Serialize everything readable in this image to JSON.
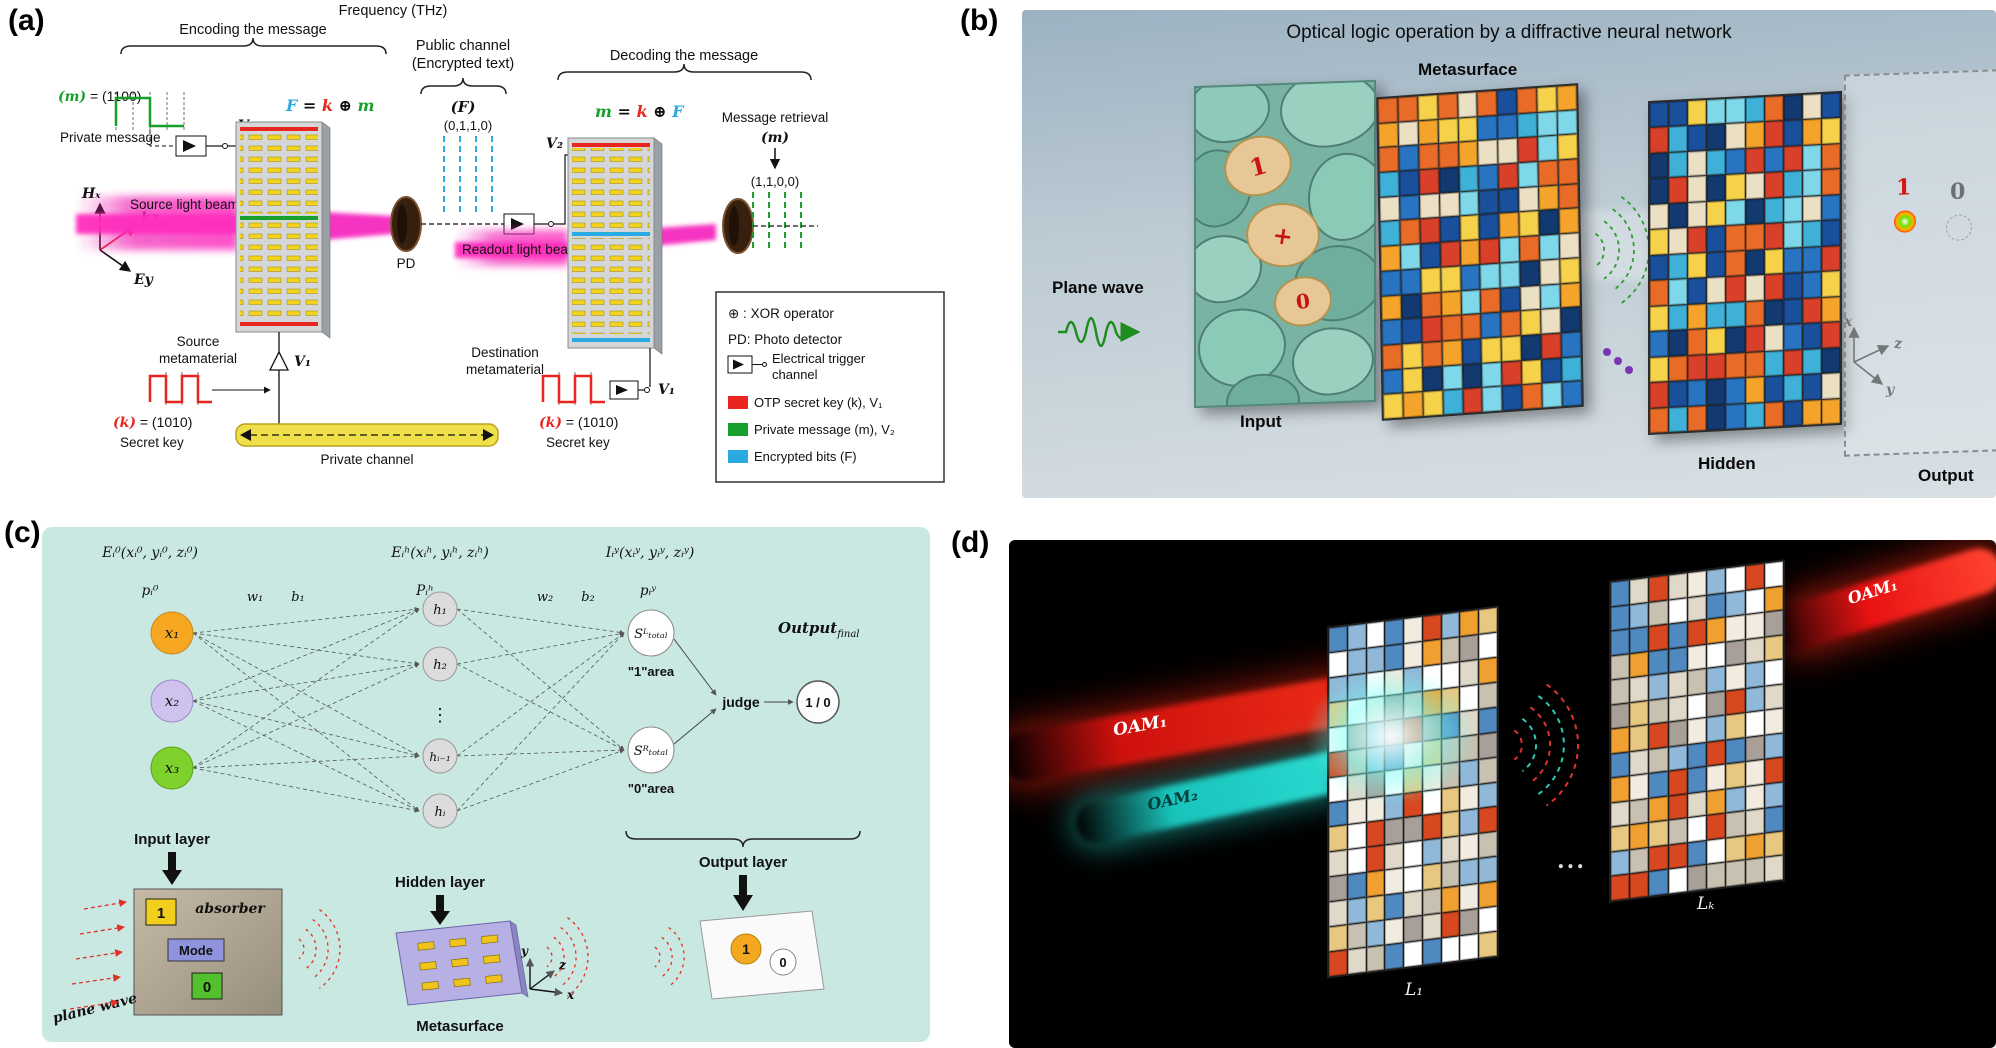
{
  "figure": {
    "a_label": "(a)",
    "b_label": "(b)",
    "c_label": "(c)",
    "d_label": "(d)"
  },
  "colors": {
    "otp_red": "#e8251f",
    "message_green": "#17a02b",
    "encrypted_cyan": "#29abe2",
    "beam_magenta": "#f01fb4",
    "panel_c_bg": "#c9e8e2",
    "oam_red": "#e81212",
    "oam_cyan": "#2ee0d6"
  },
  "a": {
    "frequency": "Frequency (THz)",
    "encoding": "Encoding the message",
    "public_channel_1": "Public channel",
    "public_channel_2": "(Encrypted text)",
    "decoding": "Decoding the message",
    "msg_m": "(m)",
    "msg_rest": " = (1100)",
    "private_message": "Private message",
    "v2": "V₂",
    "v1": "V₁",
    "eq_encode": {
      "lhs": "F",
      "eq": " = ",
      "k": "k",
      "xor": " ⊕ ",
      "rhs": "m"
    },
    "eq_decode": {
      "lhs": "m",
      "eq": " = ",
      "k": "k",
      "xor": " ⊕ ",
      "rhs": "F"
    },
    "f_label": "(F)",
    "f_bits": "(0,1,1,0)",
    "retrieval": "Message retrieval",
    "retrieval_m": "(m)",
    "retrieval_bits": "(1,1,0,0)",
    "source_beam": "Source light beam",
    "readout_beam": "Readout light beam",
    "pd": "PD",
    "source_meta_1": "Source",
    "source_meta_2": "metamaterial",
    "dest_meta_1": "Destination",
    "dest_meta_2": "metamaterial",
    "key_k": "(k)",
    "key_rest": " = (1010)",
    "secret_key": "Secret key",
    "private_channel": "Private channel",
    "axis_hx": "Hₓ",
    "axis_kz": "kz",
    "axis_ey": "Ey",
    "legend": {
      "xor": "⊕ : XOR operator",
      "pd": "PD: Photo detector",
      "trigger_1": "Electrical trigger",
      "trigger_2": "channel",
      "otp": "OTP secret key (k), V₁",
      "pm": "Private message (m), V₂",
      "enc": "Encrypted bits (F)"
    }
  },
  "b": {
    "title": "Optical logic operation by a diffractive neural network",
    "plane_wave": "Plane wave",
    "input": "Input",
    "metasurface": "Metasurface",
    "hidden": "Hidden",
    "output": "Output",
    "in_1": "1",
    "in_plus": "+",
    "in_0": "0",
    "out_1": "1",
    "out_0": "0",
    "axis_x": "x",
    "axis_y": "y",
    "axis_z": "z"
  },
  "c": {
    "e0": "Eᵢ⁰(xᵢ⁰, yᵢ⁰, zᵢ⁰)",
    "eh": "Eᵢʰ(xᵢʰ, yᵢʰ, zᵢʰ)",
    "iy": "Iᵢʸ(xᵢʸ, yᵢʸ, zᵢʸ)",
    "p0": "pᵢ⁰",
    "ph": "Pᵢʰ",
    "py": "pᵢʸ",
    "w1": "w₁",
    "b1": "b₁",
    "w2": "w₂",
    "b2": "b₂",
    "x1": "x₁",
    "x2": "x₂",
    "x3": "x₃",
    "h1": "h₁",
    "h2": "h₂",
    "hdots": "⋮",
    "hi1": "hᵢ₋₁",
    "hi": "hᵢ",
    "sL": "Sᴸₜₒₜₐₗ",
    "sR": "Sᴿₜₒₜₐₗ",
    "area1": "\"1\"area",
    "area0": "\"0\"area",
    "judge": "judge",
    "one_zero": "1 / 0",
    "output_final_base": "Output",
    "output_final_sub": "final",
    "input_layer": "Input layer",
    "hidden_layer": "Hidden layer",
    "output_layer": "Output layer",
    "absorber": "absorber",
    "mode": "Mode",
    "tile_1": "1",
    "tile_0": "0",
    "plane_wave": "plane wave",
    "metasurface": "Metasurface",
    "out_1": "1",
    "out_0": "0",
    "axis_x": "x",
    "axis_y": "y",
    "axis_z": "z"
  },
  "d": {
    "oam1_left": "OAM₁",
    "oam2": "OAM₂",
    "oam1_right": "OAM₁",
    "l1": "L₁",
    "lk": "Lₖ",
    "dots": "..."
  },
  "mosaics": {
    "b1": {
      "cols": 10,
      "rows": 13,
      "seed": 11,
      "palette": [
        "#1a4f9c",
        "#2874c0",
        "#3fb0d8",
        "#7fd8ea",
        "#f4a42a",
        "#e86c28",
        "#f6d24a",
        "#d8402a",
        "#ece0c4",
        "#123a70"
      ]
    },
    "b2": {
      "cols": 10,
      "rows": 13,
      "seed": 23,
      "palette": [
        "#1a4f9c",
        "#2874c0",
        "#3fb0d8",
        "#7fd8ea",
        "#f4a42a",
        "#e86c28",
        "#f6d24a",
        "#d8402a",
        "#ece0c4",
        "#123a70"
      ]
    },
    "d1": {
      "cols": 9,
      "rows": 14,
      "seed": 5,
      "palette": [
        "#f2ece0",
        "#e0d8c8",
        "#ffffff",
        "#c8c0b0",
        "#f0a030",
        "#d84820",
        "#5088c0",
        "#90b8d8",
        "#a8a098",
        "#e8c880"
      ]
    },
    "d2": {
      "cols": 9,
      "rows": 13,
      "seed": 17,
      "palette": [
        "#f2ece0",
        "#e0d8c8",
        "#ffffff",
        "#c8c0b0",
        "#f0a030",
        "#d84820",
        "#5088c0",
        "#90b8d8",
        "#a8a098",
        "#e8c880"
      ]
    }
  }
}
